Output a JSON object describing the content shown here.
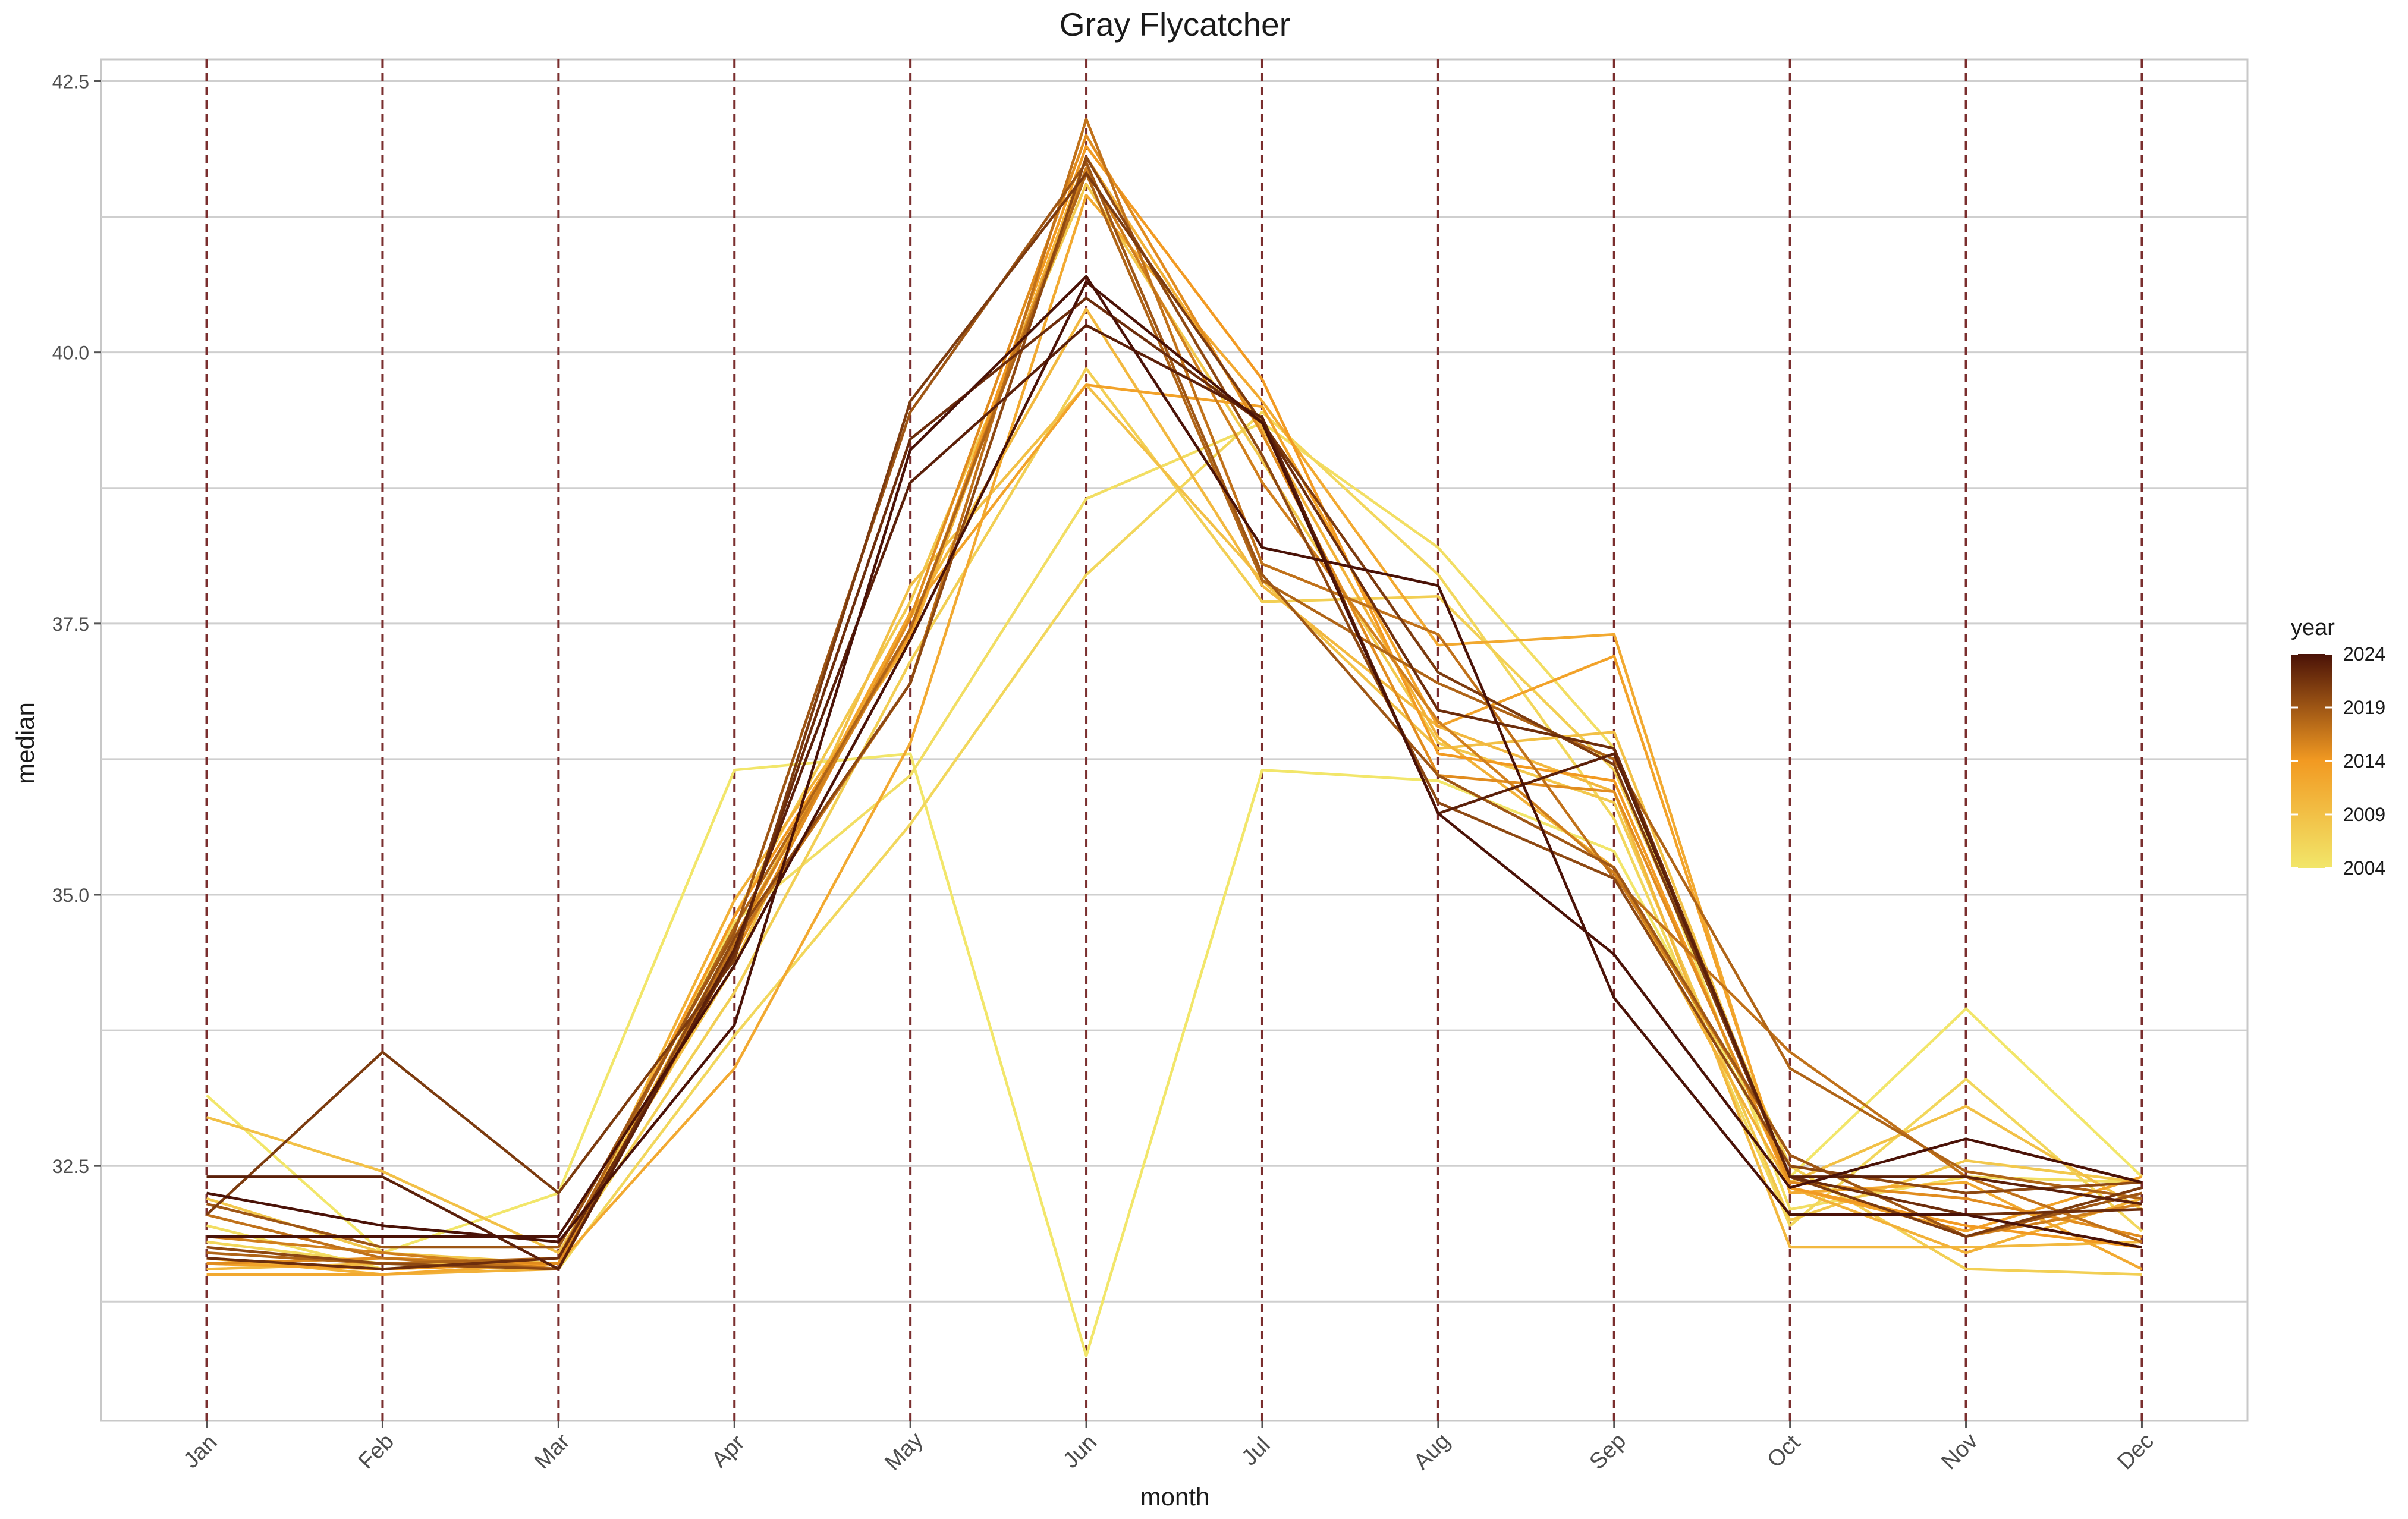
{
  "chart_data": {
    "type": "line",
    "title": "Gray Flycatcher",
    "xlabel": "month",
    "ylabel": "median",
    "categories": [
      "Jan",
      "Feb",
      "Mar",
      "Apr",
      "May",
      "Jun",
      "Jul",
      "Aug",
      "Sep",
      "Oct",
      "Nov",
      "Dec"
    ],
    "y_ticks": [
      32.5,
      35.0,
      37.5,
      40.0,
      42.5
    ],
    "y_tick_labels": [
      "32.5",
      "35.0",
      "37.5",
      "40.0",
      "42.5"
    ],
    "ylim": [
      30.15,
      42.7
    ],
    "grid": true,
    "vertical_reference_lines": "dashed at every month",
    "vline_color": "#7a2e2e",
    "legend": {
      "title": "year",
      "position": "right",
      "type": "colorbar",
      "ticks": [
        2004,
        2009,
        2014,
        2019,
        2024
      ],
      "tick_labels": [
        "2004",
        "2009",
        "2014",
        "2019",
        "2024"
      ],
      "color_low": "#f2e66a",
      "color_mid": "#f29a22",
      "color_high": "#4a1207"
    },
    "series": [
      {
        "year": 2004,
        "values": [
          33.15,
          31.7,
          32.25,
          36.15,
          36.3,
          30.75,
          36.15,
          36.05,
          35.4,
          32.4,
          33.95,
          32.4
        ]
      },
      {
        "year": 2005,
        "values": [
          31.95,
          31.55,
          31.6,
          34.75,
          36.1,
          38.65,
          39.35,
          38.2,
          36.35,
          32.1,
          32.4,
          32.35
        ]
      },
      {
        "year": 2006,
        "values": [
          31.8,
          31.6,
          31.55,
          33.7,
          35.65,
          37.95,
          39.45,
          37.95,
          35.7,
          31.95,
          33.3,
          31.9
        ]
      },
      {
        "year": 2007,
        "values": [
          31.6,
          31.55,
          31.65,
          34.1,
          37.15,
          39.85,
          37.7,
          37.75,
          36.15,
          32.5,
          31.55,
          31.5
        ]
      },
      {
        "year": 2008,
        "values": [
          32.2,
          31.7,
          31.6,
          34.8,
          37.7,
          41.55,
          39.0,
          36.4,
          35.85,
          32.0,
          32.55,
          32.35
        ]
      },
      {
        "year": 2009,
        "values": [
          32.95,
          32.45,
          31.7,
          34.35,
          37.85,
          39.7,
          37.9,
          36.35,
          36.5,
          32.35,
          33.05,
          32.1
        ]
      },
      {
        "year": 2010,
        "values": [
          31.55,
          31.6,
          31.6,
          34.6,
          37.55,
          40.4,
          37.85,
          36.55,
          35.95,
          31.75,
          31.75,
          31.8
        ]
      },
      {
        "year": 2011,
        "values": [
          31.65,
          31.5,
          31.55,
          34.95,
          37.35,
          41.8,
          39.3,
          36.45,
          35.25,
          32.3,
          31.7,
          32.2
        ]
      },
      {
        "year": 2012,
        "values": [
          31.5,
          31.5,
          31.6,
          33.4,
          36.4,
          41.45,
          39.55,
          37.3,
          37.4,
          32.25,
          32.35,
          31.55
        ]
      },
      {
        "year": 2013,
        "values": [
          31.6,
          31.55,
          31.6,
          34.55,
          37.6,
          39.7,
          39.5,
          36.55,
          37.2,
          32.3,
          31.9,
          32.4
        ]
      },
      {
        "year": 2014,
        "values": [
          31.65,
          31.55,
          31.6,
          34.8,
          37.4,
          41.9,
          39.75,
          36.3,
          36.05,
          32.3,
          31.95,
          31.75
        ]
      },
      {
        "year": 2015,
        "values": [
          31.6,
          31.65,
          31.6,
          34.45,
          37.55,
          42.0,
          39.25,
          36.1,
          35.95,
          32.35,
          32.2,
          31.85
        ]
      },
      {
        "year": 2016,
        "values": [
          31.85,
          31.7,
          31.55,
          34.6,
          37.45,
          41.7,
          38.8,
          36.6,
          35.2,
          32.6,
          31.85,
          32.15
        ]
      },
      {
        "year": 2017,
        "values": [
          32.05,
          31.65,
          31.55,
          34.55,
          36.95,
          42.15,
          38.05,
          37.4,
          35.15,
          33.55,
          32.4,
          31.8
        ]
      },
      {
        "year": 2018,
        "values": [
          31.7,
          31.6,
          31.65,
          34.7,
          37.45,
          41.65,
          37.9,
          36.95,
          36.25,
          33.4,
          32.45,
          32.2
        ]
      },
      {
        "year": 2019,
        "values": [
          32.15,
          31.75,
          31.75,
          34.65,
          39.45,
          41.75,
          37.95,
          36.1,
          35.25,
          32.6,
          31.85,
          32.25
        ]
      },
      {
        "year": 2020,
        "values": [
          31.75,
          31.6,
          31.55,
          34.6,
          36.95,
          41.8,
          39.05,
          35.85,
          35.15,
          32.5,
          32.25,
          32.35
        ]
      },
      {
        "year": 2021,
        "values": [
          32.05,
          33.55,
          32.25,
          34.4,
          39.55,
          41.65,
          39.35,
          37.05,
          36.2,
          32.4,
          31.85,
          32.3
        ]
      },
      {
        "year": 2022,
        "values": [
          31.65,
          31.55,
          31.65,
          34.45,
          39.2,
          40.5,
          39.35,
          36.7,
          36.35,
          32.4,
          32.05,
          32.1
        ]
      },
      {
        "year": 2023,
        "values": [
          32.4,
          32.4,
          31.55,
          34.5,
          38.8,
          40.25,
          39.4,
          35.75,
          36.3,
          32.4,
          32.4,
          32.15
        ]
      },
      {
        "year": 2024,
        "values": [
          32.25,
          31.95,
          31.8,
          33.8,
          39.1,
          40.7,
          38.2,
          37.85,
          34.05,
          32.05,
          32.05,
          31.75
        ]
      },
      {
        "year": 2024,
        "values": [
          31.85,
          31.85,
          31.85,
          34.35,
          37.35,
          40.65,
          39.35,
          35.75,
          34.45,
          32.3,
          32.75,
          32.35
        ]
      }
    ]
  }
}
